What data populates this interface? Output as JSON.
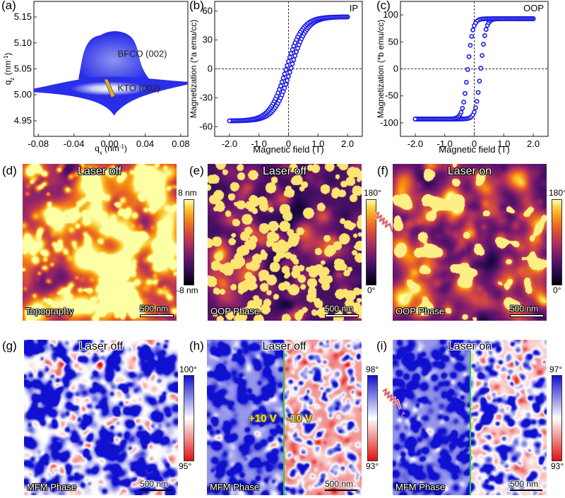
{
  "panels": {
    "a": {
      "label": "(a)",
      "annotations": [
        "BFCO (002)",
        "KTO (002)"
      ]
    },
    "b": {
      "label": "(b)",
      "tag": "IP"
    },
    "c": {
      "label": "(c)",
      "tag": "OOP"
    },
    "d": {
      "label": "(d)",
      "title": "Laser off",
      "corner": "Topography",
      "scale": "500 nm",
      "cbar_max": "8 nm",
      "cbar_min": "-8 nm"
    },
    "e": {
      "label": "(e)",
      "title": "Laser off",
      "corner": "OOP Phase",
      "scale": "500 nm",
      "cbar_max": "180°",
      "cbar_min": "0°"
    },
    "f": {
      "label": "(f)",
      "title": "Laser on",
      "corner": "OOP Phase",
      "scale": "500 nm",
      "cbar_max": "180°",
      "cbar_min": "0°"
    },
    "g": {
      "label": "(g)",
      "title": "Laser off",
      "corner": "MFM Phase",
      "scale": "500 nm",
      "cbar_max": "100°",
      "cbar_min": "95°"
    },
    "h": {
      "label": "(h)",
      "title": "Laser off",
      "corner": "MFM Phase",
      "scale": "500 nm",
      "cbar_max": "98°",
      "cbar_min": "93°",
      "left_voltage": "+10 V",
      "right_voltage": "-10 V"
    },
    "i": {
      "label": "(i)",
      "title": "Laser on",
      "corner": "MFM Phase",
      "scale": "500 nm",
      "cbar_max": "97°",
      "cbar_min": "93°"
    }
  },
  "colors": {
    "data_blue": "#1a1ae6",
    "inferno_low": "#000004",
    "inferno_high": "#fcffa4",
    "mfm_blue": "#1010d0",
    "mfm_red": "#e01010",
    "divider_green": "#2ecc40",
    "voltage_yellow": "#f0e020"
  },
  "chart_data": [
    {
      "type": "heatmap",
      "title": "",
      "xlabel": "qx (nm-1)",
      "ylabel": "qz (nm-1)",
      "xlim": [
        -0.085,
        0.088
      ],
      "ylim": [
        4.92,
        5.18
      ],
      "xticks": [
        "-0.08",
        "-0.04",
        "0.00",
        "0.04",
        "0.08"
      ],
      "yticks": [
        "4.95",
        "5.00",
        "5.05",
        "5.10",
        "5.15"
      ],
      "peaks": [
        {
          "name": "BFCO (002)",
          "qx": 0.0,
          "qz": 5.08
        },
        {
          "name": "KTO (002)",
          "qx": 0.0,
          "qz": 5.01
        }
      ]
    },
    {
      "type": "scatter",
      "title": "",
      "tag": "IP",
      "xlabel": "Magnetic field (T)",
      "ylabel": "Magnetization (*a emu/cc)",
      "xlim": [
        -2.5,
        2.5
      ],
      "ylim": [
        -70,
        70
      ],
      "xticks": [
        "-2.0",
        "-1.0",
        "0",
        "1.0",
        "2.0"
      ],
      "yticks": [
        "-60",
        "-30",
        "0",
        "30",
        "60"
      ],
      "series": [
        {
          "name": "loop",
          "Ms": 54,
          "Hc": 0.08,
          "width": 0.55,
          "xrange": [
            -2.0,
            2.0
          ]
        }
      ]
    },
    {
      "type": "scatter",
      "title": "",
      "tag": "OOP",
      "xlabel": "Magnetic field (T)",
      "ylabel": "Magnetization (*b emu/cc)",
      "xlim": [
        -2.5,
        2.5
      ],
      "ylim": [
        -125,
        125
      ],
      "xticks": [
        "-2.0",
        "-1.0",
        "0",
        "1.0",
        "2.0"
      ],
      "yticks": [
        "-100",
        "-50",
        "0",
        "50",
        "100"
      ],
      "series": [
        {
          "name": "loop",
          "Ms": 93,
          "Hc": 0.22,
          "width": 0.17,
          "xrange": [
            -2.0,
            2.0
          ]
        }
      ]
    }
  ]
}
